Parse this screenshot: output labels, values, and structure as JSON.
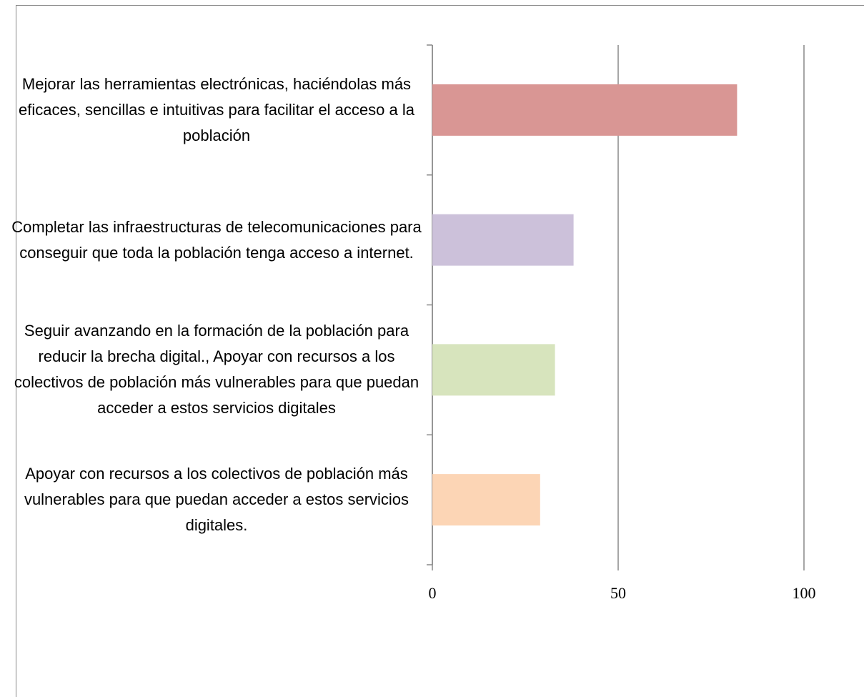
{
  "chart_data": {
    "type": "bar",
    "orientation": "horizontal",
    "categories": [
      "Mejorar las herramientas electrónicas, haciéndolas más eficaces, sencillas e intuitivas para facilitar el acceso a la población",
      "Completar las infraestructuras de telecomunicaciones para conseguir que toda la población tenga acceso a internet.",
      "Seguir avanzando en la formación de la población para reducir la brecha digital., Apoyar con recursos a los colectivos de población más vulnerables para que puedan acceder a estos servicios digitales",
      "Apoyar con recursos a los colectivos de población más vulnerables para que puedan acceder a estos servicios digitales."
    ],
    "values": [
      82,
      38,
      33,
      29
    ],
    "colors": [
      "#d99694",
      "#ccc1da",
      "#d7e4bd",
      "#fcd5b5"
    ],
    "xlim": [
      0,
      100
    ],
    "xticks": [
      0,
      50,
      100
    ],
    "grid": true
  }
}
